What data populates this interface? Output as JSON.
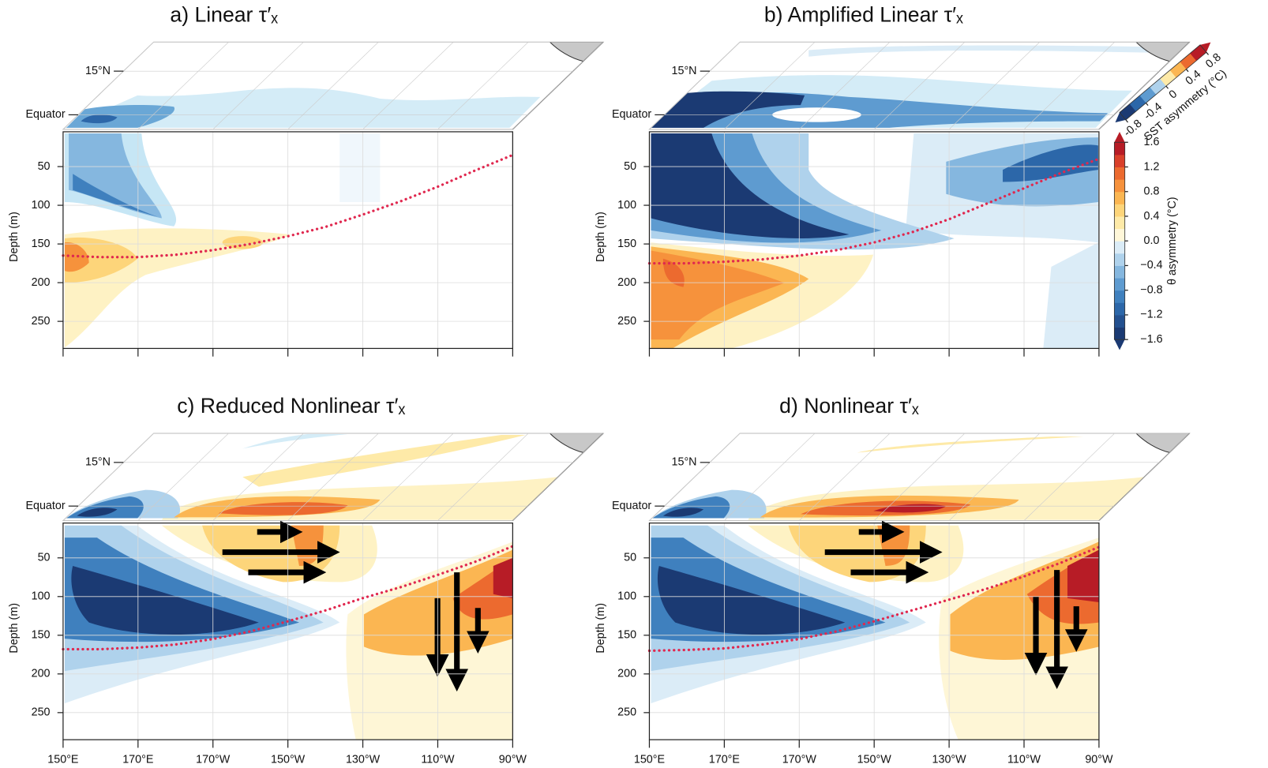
{
  "chart_data": [
    {
      "type": "contour",
      "title": "a) Linear τ′ₓ",
      "ylabel": "Depth (m)",
      "xlim": [
        150,
        270
      ],
      "xticks": [
        150,
        170,
        190,
        210,
        230,
        250,
        270
      ],
      "xtick_labels": false,
      "ylim": [
        285,
        5
      ],
      "yticks": [
        50,
        100,
        150,
        200,
        250
      ],
      "grid": true,
      "latlim": [
        -5,
        25
      ],
      "lat_labels": [
        {
          "value": 15,
          "label": "15°N"
        },
        {
          "value": 0,
          "label": "Equator"
        }
      ],
      "x": [
        150,
        160,
        170,
        180,
        190,
        200,
        210,
        220,
        230,
        240,
        250,
        260,
        270
      ],
      "values": [
        165,
        167,
        167,
        164,
        158,
        150,
        140,
        128,
        112,
        95,
        76,
        55,
        35
      ],
      "line_color": "#e0284f"
    },
    {
      "type": "contour",
      "title": "b) Amplified Linear τ′ₓ",
      "ylabel": "Depth (m)",
      "xlim": [
        150,
        270
      ],
      "xticks": [
        150,
        170,
        190,
        210,
        230,
        250,
        270
      ],
      "xtick_labels": false,
      "ylim": [
        285,
        5
      ],
      "yticks": [
        50,
        100,
        150,
        200,
        250
      ],
      "grid": true,
      "latlim": [
        -5,
        25
      ],
      "lat_labels": [
        {
          "value": 15,
          "label": "15°N"
        },
        {
          "value": 0,
          "label": "Equator"
        }
      ],
      "x": [
        150,
        160,
        170,
        180,
        190,
        200,
        210,
        220,
        230,
        240,
        250,
        260,
        270
      ],
      "values": [
        175,
        175,
        173,
        170,
        165,
        158,
        148,
        135,
        118,
        98,
        78,
        58,
        40
      ],
      "line_color": "#e0284f",
      "colorbars": [
        {
          "label": "SST asymmetry (°C)",
          "lim": [
            -0.8,
            0.8
          ],
          "ticks": [
            -0.8,
            -0.4,
            0,
            0.4,
            0.8
          ],
          "colors": [
            "#1b3a73",
            "#2c67a9",
            "#5e9bd0",
            "#afd2ec",
            "#feeaa8",
            "#fbb652",
            "#ec6a2f",
            "#b71c26"
          ]
        },
        {
          "label": "θ asymmetry (°C)",
          "lim": [
            -1.6,
            1.6
          ],
          "ticks": [
            1.6,
            1.2,
            0.8,
            0.4,
            {
              "value": 0,
              "label": "0.0"
            },
            {
              "value": -0.4,
              "label": "−0.4"
            },
            {
              "value": -0.8,
              "label": "−0.8"
            },
            {
              "value": -1.2,
              "label": "−1.2"
            },
            {
              "value": -1.6,
              "label": "−1.6"
            }
          ],
          "colors": [
            "#1b3a73",
            "#23508f",
            "#2c67a9",
            "#3f80be",
            "#5e9bd0",
            "#85b7df",
            "#afd2ec",
            "#dbecf7",
            "#fff7d9",
            "#feeaa8",
            "#fdd57a",
            "#fbb652",
            "#f6923c",
            "#ec6a2f",
            "#d9402a",
            "#b71c26"
          ]
        }
      ]
    },
    {
      "type": "contour",
      "title": "c) Reduced Nonlinear τ′ₓ",
      "ylabel": "Depth (m)",
      "xlim": [
        150,
        270
      ],
      "xticks": [
        {
          "value": 150,
          "label": "150°E"
        },
        {
          "value": 170,
          "label": "170°E"
        },
        {
          "value": 190,
          "label": "170°W"
        },
        {
          "value": 210,
          "label": "150°W"
        },
        {
          "value": 230,
          "label": "130°W"
        },
        {
          "value": 250,
          "label": "110°W"
        },
        {
          "value": 270,
          "label": "90°W"
        }
      ],
      "xtick_labels": true,
      "ylim": [
        285,
        5
      ],
      "yticks": [
        50,
        100,
        150,
        200,
        250
      ],
      "grid": true,
      "latlim": [
        -5,
        25
      ],
      "lat_labels": [
        {
          "value": 15,
          "label": "15°N"
        },
        {
          "value": 0,
          "label": "Equator"
        }
      ],
      "x": [
        150,
        160,
        170,
        180,
        190,
        200,
        210,
        220,
        230,
        240,
        250,
        260,
        270
      ],
      "values": [
        168,
        168,
        166,
        162,
        155,
        145,
        132,
        118,
        102,
        88,
        72,
        55,
        35
      ],
      "line_color": "#e0284f"
    },
    {
      "type": "contour",
      "title": "d) Nonlinear τ′ₓ",
      "ylabel": "Depth (m)",
      "xlim": [
        150,
        270
      ],
      "xticks": [
        {
          "value": 150,
          "label": "150°E"
        },
        {
          "value": 170,
          "label": "170°E"
        },
        {
          "value": 190,
          "label": "170°W"
        },
        {
          "value": 210,
          "label": "150°W"
        },
        {
          "value": 230,
          "label": "130°W"
        },
        {
          "value": 250,
          "label": "110°W"
        },
        {
          "value": 270,
          "label": "90°W"
        }
      ],
      "xtick_labels": true,
      "ylim": [
        285,
        5
      ],
      "yticks": [
        50,
        100,
        150,
        200,
        250
      ],
      "grid": true,
      "latlim": [
        -5,
        25
      ],
      "lat_labels": [
        {
          "value": 15,
          "label": "15°N"
        },
        {
          "value": 0,
          "label": "Equator"
        }
      ],
      "x": [
        150,
        160,
        170,
        180,
        190,
        200,
        210,
        220,
        230,
        240,
        250,
        260,
        270
      ],
      "values": [
        170,
        169,
        167,
        162,
        155,
        145,
        132,
        118,
        104,
        90,
        74,
        56,
        36
      ],
      "line_color": "#e0284f"
    }
  ]
}
